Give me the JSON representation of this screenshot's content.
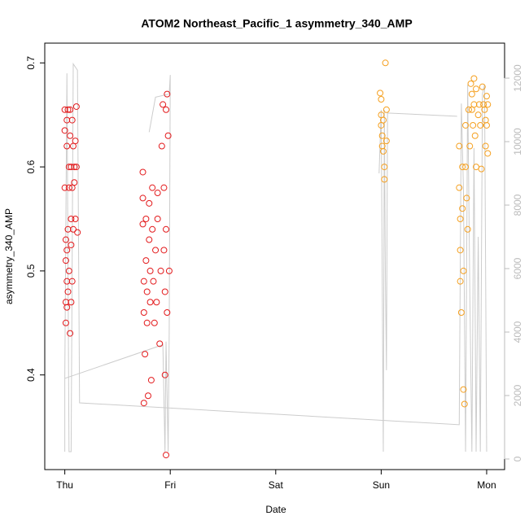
{
  "chart_data": {
    "type": "scatter",
    "title": "ATOM2 Northeast_Pacific_1 asymmetry_340_AMP",
    "x_label": "Date",
    "y_label": "asymmetry_340_AMP",
    "xlim": [
      -0.19,
      4.17
    ],
    "xticks": [
      {
        "value": 0,
        "label": "Thu"
      },
      {
        "value": 1,
        "label": "Fri"
      },
      {
        "value": 2,
        "label": "Sat"
      },
      {
        "value": 3,
        "label": "Sun"
      },
      {
        "value": 4,
        "label": "Mon"
      }
    ],
    "ylim": [
      0.309,
      0.719
    ],
    "yticks": [
      0.4,
      0.5,
      0.6,
      0.7
    ],
    "y2lim": [
      -333,
      13103
    ],
    "y2ticks": [
      0,
      2000,
      4000,
      6000,
      8000,
      10000,
      12000
    ],
    "y2_color": "#bbbbbb",
    "grid": false,
    "series": [
      {
        "color": "#e31a1c",
        "x": [
          0.0,
          0.0,
          0.0,
          0.01,
          0.01,
          0.01,
          0.01,
          0.02,
          0.02,
          0.02,
          0.02,
          0.02,
          0.03,
          0.03,
          0.03,
          0.04,
          0.04,
          0.04,
          0.05,
          0.05,
          0.05,
          0.06,
          0.06,
          0.06,
          0.06,
          0.07,
          0.07,
          0.07,
          0.08,
          0.08,
          0.09,
          0.09,
          0.1,
          0.1,
          0.11,
          0.11,
          0.12
        ],
        "values": [
          0.655,
          0.635,
          0.58,
          0.53,
          0.51,
          0.47,
          0.45,
          0.645,
          0.62,
          0.52,
          0.49,
          0.465,
          0.655,
          0.54,
          0.48,
          0.6,
          0.58,
          0.5,
          0.44,
          0.655,
          0.63,
          0.6,
          0.55,
          0.525,
          0.47,
          0.645,
          0.58,
          0.49,
          0.62,
          0.54,
          0.6,
          0.585,
          0.625,
          0.55,
          0.6,
          0.658,
          0.537
        ]
      },
      {
        "color": "#e31a1c",
        "x": [
          0.74,
          0.74,
          0.74,
          0.75,
          0.75,
          0.75,
          0.76,
          0.77,
          0.77,
          0.78,
          0.78,
          0.79,
          0.8,
          0.8,
          0.81,
          0.81,
          0.82,
          0.83,
          0.83,
          0.84,
          0.85,
          0.86,
          0.87,
          0.88,
          0.88,
          0.9,
          0.91,
          0.92,
          0.93,
          0.94,
          0.94,
          0.95,
          0.95,
          0.96,
          0.96,
          0.97,
          0.97,
          0.98,
          0.99,
          0.96
        ],
        "values": [
          0.595,
          0.57,
          0.545,
          0.49,
          0.46,
          0.373,
          0.42,
          0.55,
          0.51,
          0.48,
          0.45,
          0.38,
          0.565,
          0.53,
          0.5,
          0.47,
          0.395,
          0.58,
          0.54,
          0.49,
          0.45,
          0.52,
          0.47,
          0.575,
          0.55,
          0.43,
          0.5,
          0.62,
          0.66,
          0.58,
          0.52,
          0.48,
          0.4,
          0.655,
          0.54,
          0.67,
          0.46,
          0.63,
          0.5,
          0.323
        ]
      },
      {
        "color": "#f5a020",
        "x": [
          2.99,
          3.0,
          3.0,
          3.0,
          3.01,
          3.01,
          3.02,
          3.02,
          3.03,
          3.03,
          3.04,
          3.05,
          3.05
        ],
        "values": [
          0.671,
          0.665,
          0.65,
          0.64,
          0.63,
          0.62,
          0.645,
          0.615,
          0.6,
          0.588,
          0.7,
          0.655,
          0.625
        ]
      },
      {
        "color": "#f5a020",
        "x": [
          3.74,
          3.74,
          3.75,
          3.75,
          3.75,
          3.76,
          3.77,
          3.77,
          3.78,
          3.78,
          3.79,
          3.8,
          3.8,
          3.81,
          3.82,
          3.83,
          3.84,
          3.85,
          3.86,
          3.86,
          3.87,
          3.88,
          3.88,
          3.89,
          3.9,
          3.9,
          3.92,
          3.93,
          3.94,
          3.95,
          3.96,
          3.97,
          3.98,
          3.99,
          4.0,
          4.0,
          4.01,
          4.01,
          3.99
        ],
        "values": [
          0.62,
          0.58,
          0.55,
          0.52,
          0.49,
          0.46,
          0.6,
          0.56,
          0.5,
          0.386,
          0.372,
          0.64,
          0.6,
          0.57,
          0.54,
          0.655,
          0.62,
          0.68,
          0.67,
          0.655,
          0.64,
          0.685,
          0.66,
          0.63,
          0.6,
          0.675,
          0.65,
          0.66,
          0.64,
          0.598,
          0.677,
          0.66,
          0.655,
          0.645,
          0.668,
          0.64,
          0.66,
          0.613,
          0.62
        ]
      },
      {
        "color": "#cccccc",
        "axis": "y2",
        "x": [
          0.0,
          0.0,
          0.02,
          0.04,
          0.06,
          0.08,
          0.12,
          0.14,
          3.74,
          3.76,
          3.78,
          3.8,
          3.82,
          3.84,
          3.86,
          3.88,
          3.9,
          3.92,
          3.94,
          3.96,
          3.98,
          4.0
        ],
        "values": [
          230,
          2540,
          12150,
          230,
          230,
          12450,
          12250,
          1770,
          1080,
          11200,
          8500,
          230,
          11800,
          5300,
          230,
          9800,
          230,
          7000,
          230,
          11500,
          11800,
          230
        ]
      },
      {
        "color": "#cccccc",
        "axis": "y2",
        "x": [
          0.0,
          0.93,
          0.95,
          0.96,
          0.98,
          0.99,
          1.0,
          0.99,
          0.86,
          0.8
        ],
        "values": [
          2540,
          3600,
          230,
          3700,
          230,
          4000,
          12100,
          11500,
          11400,
          10300
        ]
      },
      {
        "color": "#cccccc",
        "axis": "y2",
        "x": [
          2.98,
          3.0,
          3.02,
          3.03,
          3.04,
          3.05,
          3.06,
          3.72
        ],
        "values": [
          9000,
          11000,
          230,
          11000,
          5700,
          2800,
          10900,
          10800
        ]
      }
    ]
  }
}
